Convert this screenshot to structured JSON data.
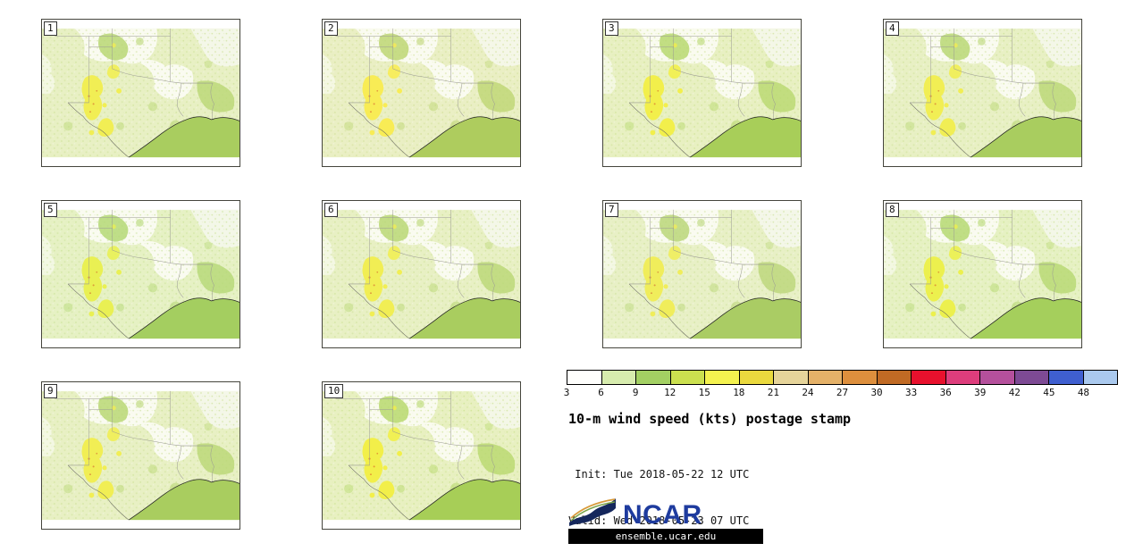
{
  "panels": [
    {
      "label": "1"
    },
    {
      "label": "2"
    },
    {
      "label": "3"
    },
    {
      "label": "4"
    },
    {
      "label": "5"
    },
    {
      "label": "6"
    },
    {
      "label": "7"
    },
    {
      "label": "8"
    },
    {
      "label": "9"
    },
    {
      "label": "10"
    }
  ],
  "colorbar": {
    "ticks": [
      "3",
      "6",
      "9",
      "12",
      "15",
      "18",
      "21",
      "24",
      "27",
      "30",
      "33",
      "36",
      "39",
      "42",
      "45",
      "48"
    ],
    "colors": [
      "#fefefc",
      "#d7ecae",
      "#a3d063",
      "#cbe04f",
      "#f4f24f",
      "#ead93e",
      "#e6d49a",
      "#e4b168",
      "#dd8f3d",
      "#c06a24",
      "#e8112d",
      "#dd3d7c",
      "#b5509c",
      "#7d4a94",
      "#3f5fd0",
      "#aac9ee"
    ]
  },
  "title": "10-m wind speed (kts) postage stamp",
  "init_line": " Init: Tue 2018-05-22 12 UTC",
  "valid_line": "Valid: Wed 2018-05-23 07 UTC",
  "logo": {
    "text": "NCAR",
    "url": "ensemble.ucar.edu",
    "navy": "#15275c",
    "text_blue": "#1e3b9e"
  },
  "map_colors": {
    "background": "#e8f0c4",
    "calm_white": "#fafbf1",
    "moderate_green": "#b9d774",
    "gulf_green": "#a9cd5f",
    "windy_yellow": "#f1ee54",
    "strong_orange": "#df9a3c"
  }
}
